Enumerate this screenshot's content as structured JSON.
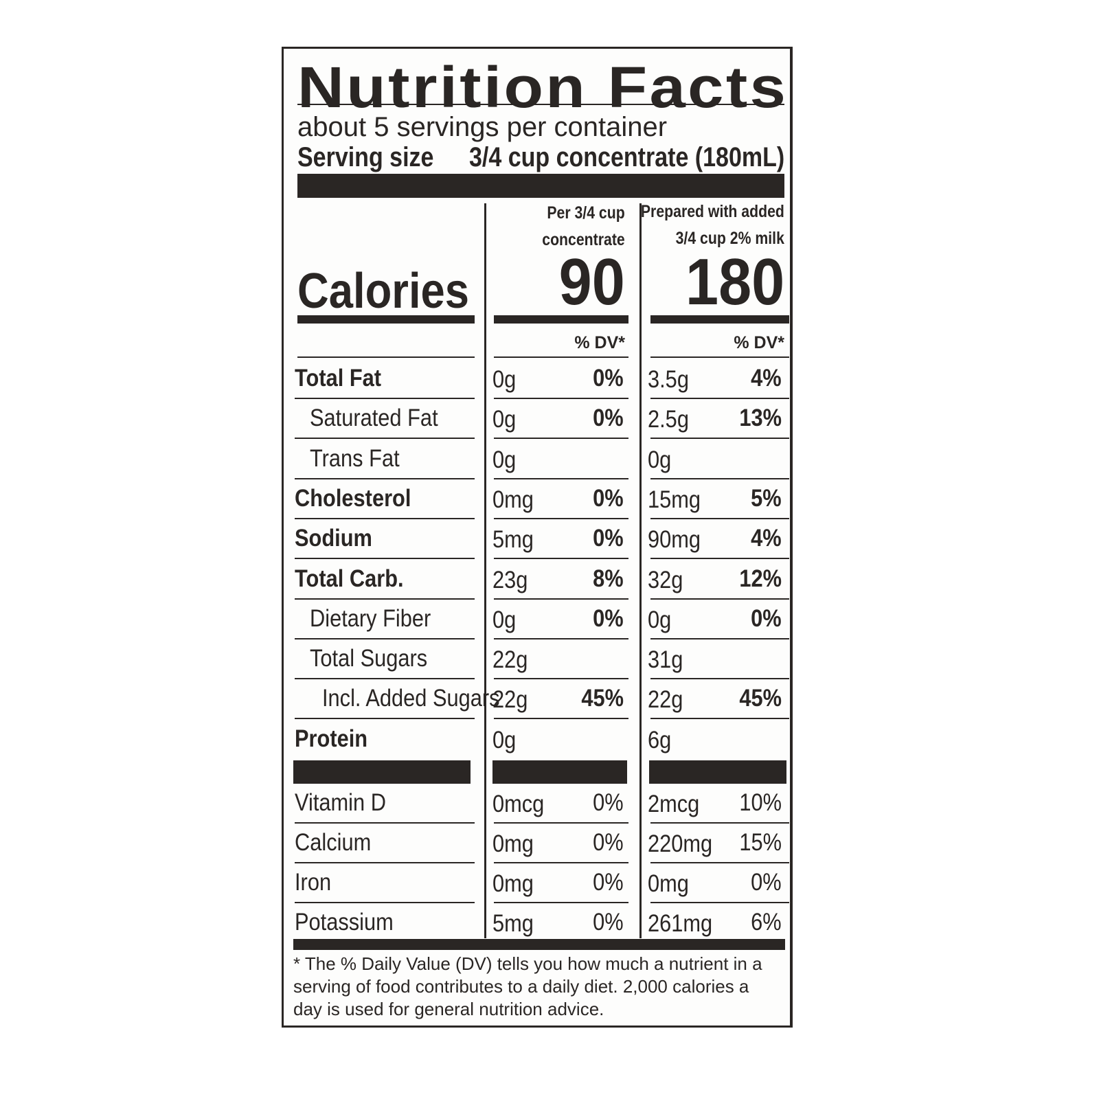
{
  "title": "Nutrition Facts",
  "servings_per_container": "about 5 servings per container",
  "serving_size_label": "Serving size",
  "serving_size_value": "3/4 cup concentrate (180mL)",
  "columns": [
    {
      "header_line1": "Per 3/4 cup",
      "header_line2": "concentrate",
      "calories": "90",
      "dv_header": "% DV*"
    },
    {
      "header_line1": "Prepared with added",
      "header_line2": "3/4 cup 2% milk",
      "calories": "180",
      "dv_header": "% DV*"
    }
  ],
  "calories_label": "Calories",
  "nutrients": [
    {
      "name": "Total Fat",
      "indent": 0,
      "bold": true,
      "v1": "0g",
      "dv1": "0%",
      "v2": "3.5g",
      "dv2": "4%"
    },
    {
      "name": "Saturated Fat",
      "indent": 1,
      "bold": false,
      "v1": "0g",
      "dv1": "0%",
      "v2": "2.5g",
      "dv2": "13%"
    },
    {
      "name": "Trans Fat",
      "indent": 1,
      "bold": false,
      "v1": "0g",
      "dv1": "",
      "v2": "0g",
      "dv2": ""
    },
    {
      "name": "Cholesterol",
      "indent": 0,
      "bold": true,
      "v1": "0mg",
      "dv1": "0%",
      "v2": "15mg",
      "dv2": "5%"
    },
    {
      "name": "Sodium",
      "indent": 0,
      "bold": true,
      "v1": "5mg",
      "dv1": "0%",
      "v2": "90mg",
      "dv2": "4%"
    },
    {
      "name": "Total Carb.",
      "indent": 0,
      "bold": true,
      "v1": "23g",
      "dv1": "8%",
      "v2": "32g",
      "dv2": "12%"
    },
    {
      "name": "Dietary Fiber",
      "indent": 1,
      "bold": false,
      "v1": "0g",
      "dv1": "0%",
      "v2": "0g",
      "dv2": "0%"
    },
    {
      "name": "Total Sugars",
      "indent": 1,
      "bold": false,
      "v1": "22g",
      "dv1": "",
      "v2": "31g",
      "dv2": ""
    },
    {
      "name": "Incl. Added Sugars",
      "indent": 2,
      "bold": false,
      "v1": "22g",
      "dv1": "45%",
      "v2": "22g",
      "dv2": "45%"
    },
    {
      "name": "Protein",
      "indent": 0,
      "bold": true,
      "v1": "0g",
      "dv1": "",
      "v2": "6g",
      "dv2": ""
    }
  ],
  "vitamins": [
    {
      "name": "Vitamin D",
      "v1": "0mcg",
      "dv1": "0%",
      "v2": "2mcg",
      "dv2": "10%"
    },
    {
      "name": "Calcium",
      "v1": "0mg",
      "dv1": "0%",
      "v2": "220mg",
      "dv2": "15%"
    },
    {
      "name": "Iron",
      "v1": "0mg",
      "dv1": "0%",
      "v2": "0mg",
      "dv2": "0%"
    },
    {
      "name": "Potassium",
      "v1": "5mg",
      "dv1": "0%",
      "v2": "261mg",
      "dv2": "6%"
    }
  ],
  "footnote": "* The % Daily Value (DV) tells you how much a nutrient in a serving of food contributes to a daily diet. 2,000 calories a day is used for general nutrition advice."
}
